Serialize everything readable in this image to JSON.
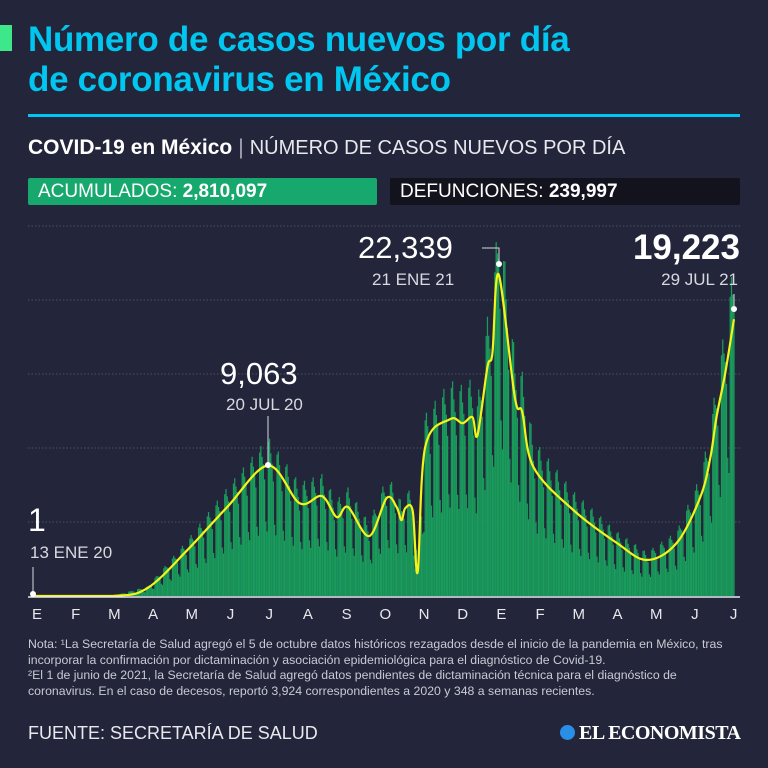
{
  "header": {
    "title_line1": "Número de casos nuevos por día",
    "title_line2": "de coronavirus en México",
    "subtitle_bold": "COVID-19 en México",
    "subtitle_sep": "|",
    "subtitle_light": "NÚMERO DE CASOS NUEVOS POR DÍA",
    "accent_color": "#00c6f0",
    "marker_color": "#3ee88a"
  },
  "stats": {
    "acumulados_label": "ACUMULADOS:",
    "acumulados_value": "2,810,097",
    "defunciones_label": "DEFUNCIONES:",
    "defunciones_value": "239,997"
  },
  "chart_data": {
    "type": "bar",
    "xlabel": "",
    "ylabel": "",
    "ylim": [
      0,
      25700
    ],
    "grid": true,
    "month_labels": [
      "E",
      "F",
      "M",
      "A",
      "M",
      "J",
      "J",
      "A",
      "S",
      "O",
      "N",
      "D",
      "E",
      "F",
      "M",
      "A",
      "M",
      "J",
      "J"
    ],
    "x_range": [
      "2020-01-13",
      "2021-07-29"
    ],
    "bar_color": "#1a9c5c",
    "curve_color": "#f4f41a",
    "trend_curve": [
      [
        "2020-01-13",
        1
      ],
      [
        "2020-03-17",
        0
      ],
      [
        "2020-04-14",
        555
      ],
      [
        "2020-05-16",
        3190
      ],
      [
        "2020-06-17",
        6180
      ],
      [
        "2020-07-20",
        9063
      ],
      [
        "2020-08-14",
        6450
      ],
      [
        "2020-09-01",
        6940
      ],
      [
        "2020-09-13",
        5480
      ],
      [
        "2020-09-22",
        6180
      ],
      [
        "2020-10-09",
        4160
      ],
      [
        "2020-10-23",
        6800
      ],
      [
        "2020-10-31",
        6180
      ],
      [
        "2020-11-04",
        5270
      ],
      [
        "2020-11-07",
        6100
      ],
      [
        "2020-11-13",
        5900
      ],
      [
        "2020-11-17",
        1670
      ],
      [
        "2020-11-23",
        10340
      ],
      [
        "2020-12-13",
        12280
      ],
      [
        "2020-12-23",
        12000
      ],
      [
        "2020-12-31",
        12420
      ],
      [
        "2021-01-04",
        11170
      ],
      [
        "2021-01-12",
        15900
      ],
      [
        "2021-01-16",
        16860
      ],
      [
        "2021-01-21",
        22339
      ],
      [
        "2021-02-03",
        13800
      ],
      [
        "2021-02-09",
        12770
      ],
      [
        "2021-02-18",
        8950
      ],
      [
        "2021-03-22",
        5970
      ],
      [
        "2021-04-26",
        3680
      ],
      [
        "2021-05-20",
        2500
      ],
      [
        "2021-06-13",
        3680
      ],
      [
        "2021-07-02",
        6870
      ],
      [
        "2021-07-10",
        9580
      ],
      [
        "2021-07-15",
        12420
      ],
      [
        "2021-07-22",
        15480
      ],
      [
        "2021-07-29",
        19223
      ]
    ],
    "annotations": [
      {
        "value": "1",
        "date": "13 ENE 20"
      },
      {
        "value": "9,063",
        "date": "20 JUL 20"
      },
      {
        "value": "22,339",
        "date": "21 ENE 21"
      },
      {
        "value": "19,223",
        "date": "29 JUL 21"
      }
    ]
  },
  "footer": {
    "note": "Nota: ¹La Secretaría de Salud agregó el 5 de octubre datos históricos rezagados desde el inicio de la pandemia en México, tras incorporar la confirmación por dictaminación y asociación epidemiológica para el diagnóstico de Covid-19.",
    "note2": "²El 1 de junio de 2021, la Secretaría de Salud agregó datos pendientes de dictaminación técnica para el diagnóstico de coronavirus. En el caso de decesos, reportó 3,924 correspondientes a 2020 y 348 a semanas recientes.",
    "source": "FUENTE: SECRETARÍA DE SALUD",
    "logo": "EL ECONOMISTA"
  }
}
